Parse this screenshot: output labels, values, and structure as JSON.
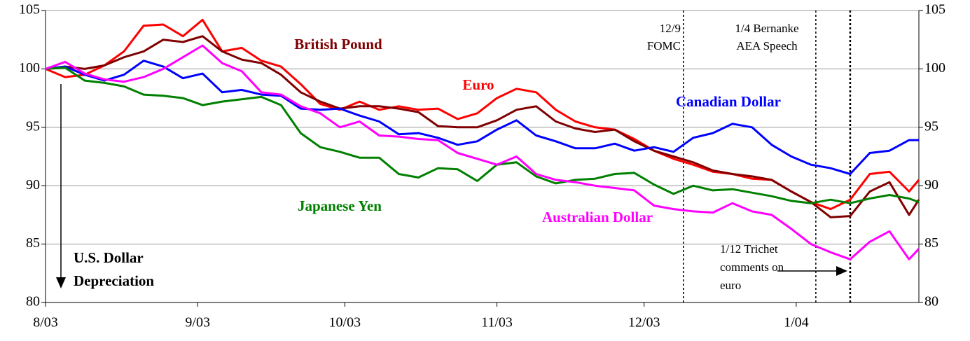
{
  "chart_data": {
    "type": "line",
    "x": [
      0,
      4,
      8,
      12,
      16,
      20,
      24,
      28,
      32,
      36,
      40,
      44,
      48,
      52,
      56,
      60,
      64,
      68,
      72,
      76,
      80,
      84,
      88,
      92,
      96,
      100,
      104,
      108,
      112,
      116,
      120,
      124,
      128,
      132,
      136,
      140,
      144,
      148,
      152,
      156,
      160,
      164,
      168,
      172,
      176,
      178
    ],
    "xlim": [
      0,
      178
    ],
    "xticks": [
      {
        "value": 0,
        "label": "8/03"
      },
      {
        "value": 31,
        "label": "9/03"
      },
      {
        "value": 61,
        "label": "10/03"
      },
      {
        "value": 92,
        "label": "11/03"
      },
      {
        "value": 122,
        "label": "12/03"
      },
      {
        "value": 153,
        "label": "1/04"
      }
    ],
    "ylim": [
      80,
      105
    ],
    "yticks": [
      80,
      85,
      90,
      95,
      100,
      105
    ],
    "y2lim": [
      80,
      105
    ],
    "y2ticks": [
      80,
      85,
      90,
      95,
      100,
      105
    ],
    "grid": true,
    "series": [
      {
        "name": "Euro",
        "color": "#ff0000",
        "values": [
          100,
          99.3,
          99.5,
          100.3,
          101.5,
          103.7,
          103.8,
          102.8,
          104.2,
          101.5,
          101.8,
          100.7,
          100.2,
          98.7,
          97.0,
          96.5,
          97.2,
          96.5,
          96.8,
          96.5,
          96.6,
          95.7,
          96.2,
          97.5,
          98.3,
          98.0,
          96.5,
          95.5,
          95.0,
          94.8,
          94.0,
          93.0,
          92.3,
          91.8,
          91.2,
          91.0,
          90.6,
          90.5,
          89.5,
          88.6,
          88.0,
          88.8,
          91.0,
          91.2,
          89.5,
          90.5
        ]
      },
      {
        "name": "British Pound",
        "color": "#800000",
        "values": [
          100,
          100.2,
          100,
          100.3,
          101.0,
          101.5,
          102.5,
          102.3,
          102.8,
          101.5,
          100.8,
          100.5,
          99.5,
          98.0,
          97.2,
          96.6,
          96.8,
          96.8,
          96.6,
          96.3,
          95.1,
          95.0,
          95.0,
          95.6,
          96.5,
          96.8,
          95.5,
          94.9,
          94.6,
          94.8,
          93.8,
          93.0,
          92.5,
          92.0,
          91.3,
          91.0,
          90.8,
          90.5,
          89.5,
          88.6,
          87.3,
          87.4,
          89.5,
          90.3,
          87.5,
          88.8
        ]
      },
      {
        "name": "Canadian Dollar",
        "color": "#0000ff",
        "values": [
          100,
          100.2,
          99.5,
          99.0,
          99.5,
          100.7,
          100.2,
          99.2,
          99.6,
          98.0,
          98.2,
          97.8,
          97.7,
          96.6,
          96.5,
          96.6,
          96.0,
          95.5,
          94.4,
          94.5,
          94.1,
          93.5,
          93.8,
          94.8,
          95.6,
          94.3,
          93.8,
          93.2,
          93.2,
          93.6,
          93.0,
          93.3,
          92.9,
          94.1,
          94.5,
          95.3,
          95.0,
          93.5,
          92.5,
          91.8,
          91.5,
          91.0,
          92.8,
          93.0,
          93.9,
          93.9
        ]
      },
      {
        "name": "Japanese Yen",
        "color": "#008000",
        "values": [
          100,
          100.1,
          99.0,
          98.8,
          98.5,
          97.8,
          97.7,
          97.5,
          96.9,
          97.2,
          97.4,
          97.6,
          96.9,
          94.5,
          93.3,
          92.9,
          92.4,
          92.4,
          91.0,
          90.7,
          91.5,
          91.4,
          90.4,
          91.8,
          92.0,
          90.8,
          90.2,
          90.5,
          90.6,
          91.0,
          91.1,
          90.1,
          89.3,
          90.0,
          89.6,
          89.7,
          89.4,
          89.1,
          88.7,
          88.5,
          88.8,
          88.5,
          88.9,
          89.2,
          88.9,
          88.6
        ]
      },
      {
        "name": "Australian Dollar",
        "color": "#ff00ff",
        "values": [
          100,
          100.6,
          99.6,
          99.1,
          98.9,
          99.3,
          100.0,
          101.0,
          102.0,
          100.5,
          99.8,
          98.0,
          97.8,
          96.8,
          96.2,
          95.0,
          95.5,
          94.3,
          94.2,
          94.0,
          93.9,
          92.8,
          92.3,
          91.8,
          92.5,
          91.0,
          90.5,
          90.3,
          90.0,
          89.8,
          89.6,
          88.3,
          88.0,
          87.8,
          87.7,
          88.5,
          87.8,
          87.5,
          86.3,
          85.0,
          84.3,
          83.7,
          85.2,
          86.1,
          83.7,
          84.6
        ]
      }
    ],
    "event_lines": [
      130,
      157,
      164
    ],
    "annotations": [
      {
        "lines": [
          "12/9",
          "FOMC"
        ]
      },
      {
        "lines": [
          "1/4 Bernanke",
          "AEA Speech"
        ]
      },
      {
        "lines": [
          "1/12 Trichet",
          "comments on",
          "euro"
        ]
      },
      {
        "lines": [
          "U.S. Dollar",
          "Depreciation"
        ]
      }
    ]
  }
}
